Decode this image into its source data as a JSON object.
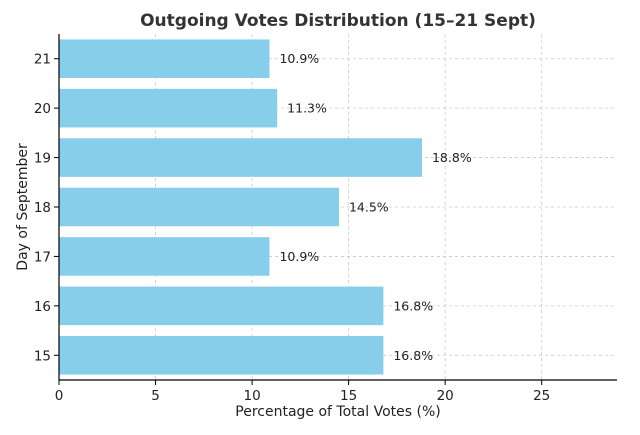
{
  "chart_data": {
    "type": "bar",
    "orientation": "horizontal",
    "title": "Outgoing Votes Distribution (15–21 Sept)",
    "xlabel": "Percentage of Total Votes (%)",
    "ylabel": "Day of September",
    "categories": [
      "15",
      "16",
      "17",
      "18",
      "19",
      "20",
      "21"
    ],
    "values": [
      16.8,
      16.8,
      10.9,
      14.5,
      18.8,
      11.3,
      10.9
    ],
    "data_labels": [
      "16.8%",
      "16.8%",
      "10.9%",
      "14.5%",
      "18.8%",
      "11.3%",
      "10.9%"
    ],
    "xlim": [
      0,
      28.9
    ],
    "xticks": [
      0,
      5,
      10,
      15,
      20,
      25
    ],
    "bar_color": "#87ceeb",
    "grid": true
  }
}
